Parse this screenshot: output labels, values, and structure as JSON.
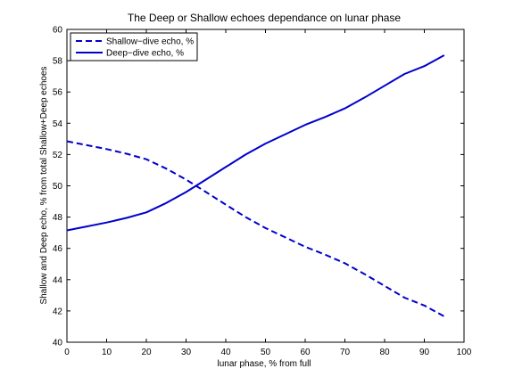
{
  "chart_data": {
    "type": "line",
    "title": "The Deep or Shallow echoes dependance on lunar phase",
    "xlabel": "lunar phase, % from full",
    "ylabel": "Shallow and Deep echo, % from total Shallow+Deep echoes",
    "xlim": [
      0,
      100
    ],
    "ylim": [
      40,
      60
    ],
    "xticks": [
      0,
      10,
      20,
      30,
      40,
      50,
      60,
      70,
      80,
      90,
      100
    ],
    "yticks": [
      40,
      42,
      44,
      46,
      48,
      50,
      52,
      54,
      56,
      58,
      60
    ],
    "grid": false,
    "legend_position": "top-left",
    "series": [
      {
        "name": "Shallow−dive echo, %",
        "line_style": "dashed",
        "color": "#0000cc",
        "x": [
          0,
          5,
          10,
          15,
          20,
          25,
          30,
          35,
          40,
          45,
          50,
          55,
          60,
          65,
          70,
          75,
          80,
          85,
          90,
          95
        ],
        "y": [
          52.85,
          52.6,
          52.35,
          52.05,
          51.7,
          51.1,
          50.4,
          49.6,
          48.8,
          48.0,
          47.3,
          46.7,
          46.1,
          45.6,
          45.05,
          44.35,
          43.6,
          42.85,
          42.35,
          41.65
        ]
      },
      {
        "name": "Deep−dive echo, %",
        "line_style": "solid",
        "color": "#0000cc",
        "x": [
          0,
          5,
          10,
          15,
          20,
          25,
          30,
          35,
          40,
          45,
          50,
          55,
          60,
          65,
          70,
          75,
          80,
          85,
          90,
          95
        ],
        "y": [
          47.15,
          47.4,
          47.65,
          47.95,
          48.3,
          48.9,
          49.6,
          50.4,
          51.2,
          52.0,
          52.7,
          53.3,
          53.9,
          54.4,
          54.95,
          55.65,
          56.4,
          57.15,
          57.65,
          58.35
        ]
      }
    ]
  }
}
